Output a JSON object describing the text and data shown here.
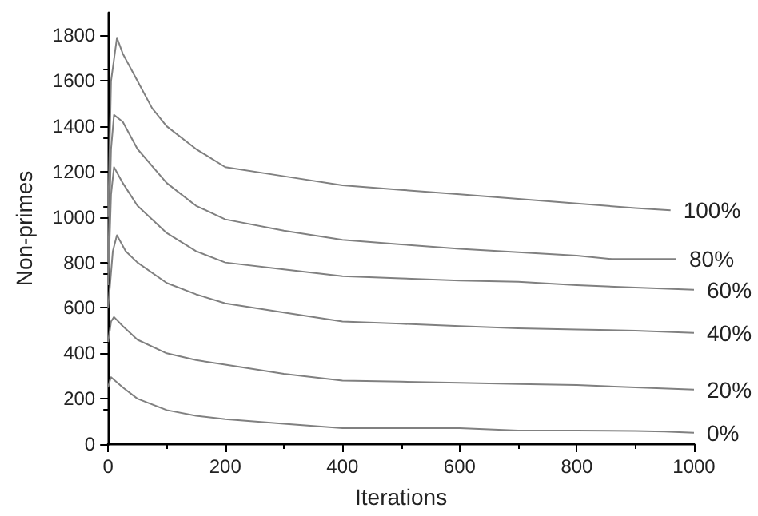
{
  "chart_data": {
    "type": "line",
    "xlabel": "Iterations",
    "ylabel": "Non-primes",
    "xlim": [
      0,
      1000
    ],
    "ylim": [
      0,
      1900
    ],
    "xticks": [
      0,
      200,
      400,
      600,
      800,
      1000
    ],
    "yticks": [
      0,
      200,
      400,
      600,
      800,
      1000,
      1200,
      1400,
      1600,
      1800
    ],
    "grid": false,
    "legend": false,
    "marker": "none",
    "line_style": "solid",
    "series": [
      {
        "name": "100%",
        "color": "#808080",
        "x": [
          0,
          5,
          15,
          25,
          50,
          75,
          100,
          150,
          200,
          300,
          400,
          500,
          600,
          700,
          800,
          900,
          960
        ],
        "values": [
          1000,
          1600,
          1790,
          1720,
          1600,
          1480,
          1400,
          1300,
          1220,
          1180,
          1140,
          1120,
          1100,
          1080,
          1060,
          1040,
          1030
        ]
      },
      {
        "name": "80%",
        "color": "#808080",
        "x": [
          0,
          5,
          10,
          25,
          50,
          100,
          150,
          200,
          300,
          400,
          500,
          600,
          700,
          800,
          860,
          970
        ],
        "values": [
          800,
          1300,
          1450,
          1420,
          1300,
          1150,
          1050,
          990,
          940,
          900,
          880,
          860,
          845,
          830,
          815,
          815
        ]
      },
      {
        "name": "60%",
        "color": "#808080",
        "x": [
          0,
          5,
          10,
          25,
          50,
          100,
          150,
          200,
          300,
          400,
          500,
          600,
          700,
          800,
          900,
          1000
        ],
        "values": [
          700,
          1100,
          1220,
          1150,
          1050,
          930,
          850,
          800,
          770,
          740,
          730,
          720,
          715,
          700,
          690,
          680
        ]
      },
      {
        "name": "40%",
        "color": "#808080",
        "x": [
          0,
          8,
          15,
          30,
          50,
          100,
          150,
          200,
          300,
          400,
          500,
          600,
          700,
          800,
          900,
          1000
        ],
        "values": [
          600,
          850,
          920,
          850,
          800,
          710,
          660,
          620,
          580,
          540,
          530,
          520,
          510,
          505,
          500,
          490
        ]
      },
      {
        "name": "20%",
        "color": "#808080",
        "x": [
          0,
          5,
          10,
          25,
          50,
          100,
          150,
          200,
          300,
          400,
          500,
          600,
          700,
          800,
          900,
          1000
        ],
        "values": [
          450,
          540,
          560,
          520,
          460,
          400,
          370,
          350,
          310,
          280,
          275,
          270,
          265,
          260,
          250,
          240
        ]
      },
      {
        "name": "0%",
        "color": "#808080",
        "x": [
          0,
          3,
          5,
          25,
          50,
          100,
          150,
          200,
          300,
          400,
          500,
          600,
          700,
          800,
          900,
          950,
          1000
        ],
        "values": [
          250,
          280,
          295,
          250,
          200,
          150,
          125,
          110,
          90,
          70,
          70,
          70,
          60,
          60,
          58,
          55,
          50
        ]
      }
    ]
  }
}
